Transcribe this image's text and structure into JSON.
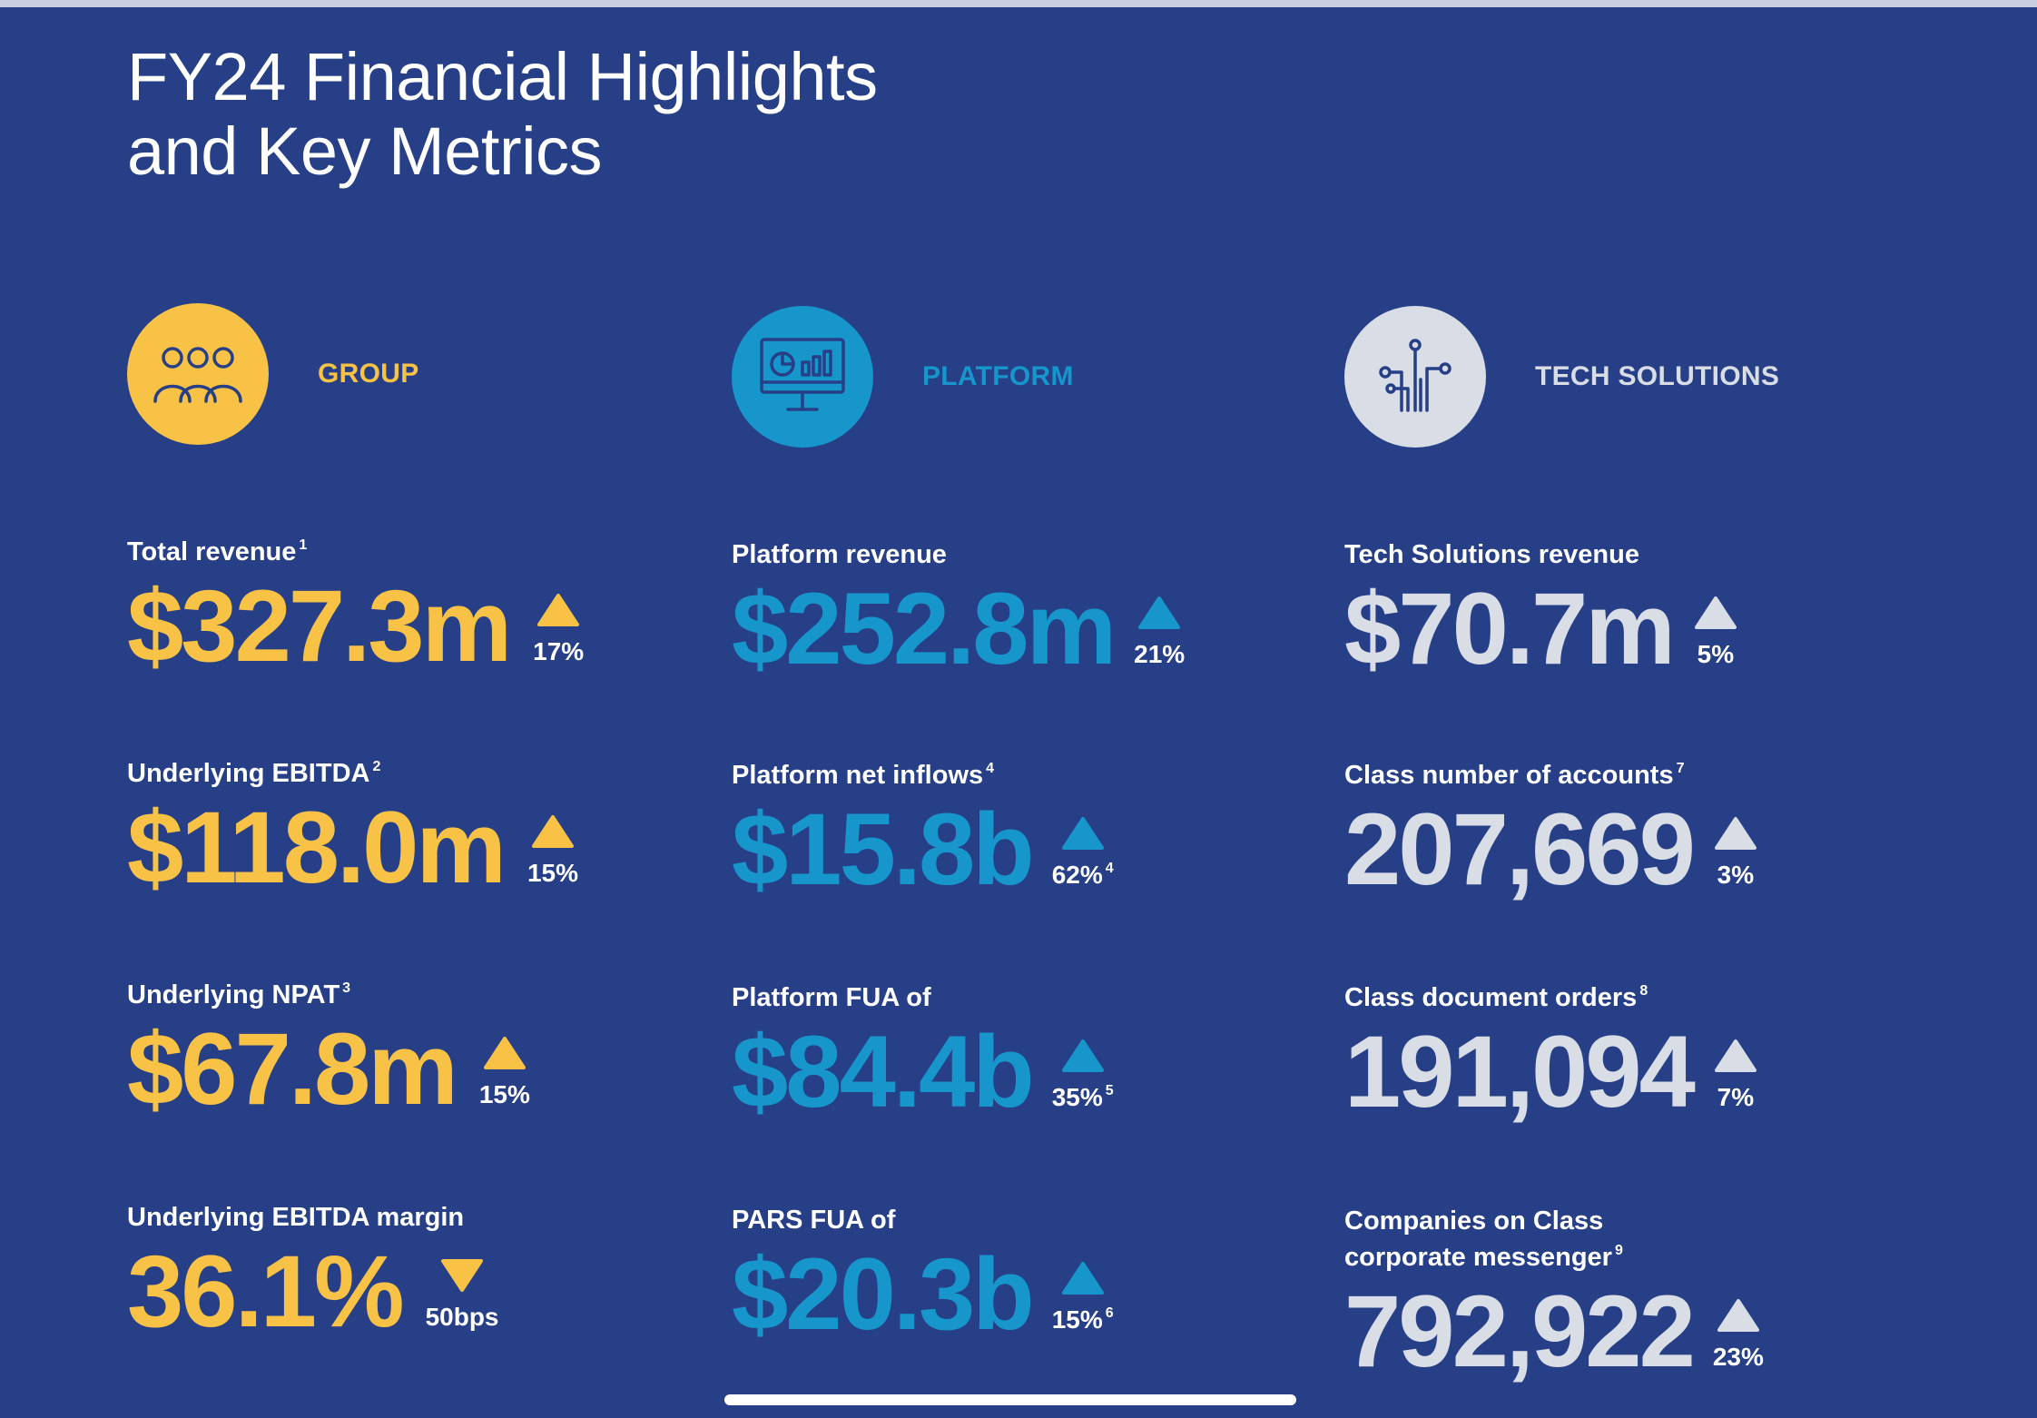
{
  "title": {
    "line1": "FY24 Financial Highlights",
    "line2": "and Key Metrics"
  },
  "colors": {
    "background": "#263f87",
    "group": "#f7c245",
    "platform": "#1796cc",
    "tech": "#d9dde5"
  },
  "columns": [
    {
      "heading": "GROUP",
      "icon": "people-group-icon",
      "metrics": [
        {
          "label": "Total revenue",
          "label_note": "1",
          "value": "$327.3m",
          "direction": "up",
          "change": "17%",
          "change_note": ""
        },
        {
          "label": "Underlying EBITDA",
          "label_note": "2",
          "value": "$118.0m",
          "direction": "up",
          "change": "15%",
          "change_note": ""
        },
        {
          "label": "Underlying NPAT",
          "label_note": "3",
          "value": "$67.8m",
          "direction": "up",
          "change": "15%",
          "change_note": ""
        },
        {
          "label": "Underlying EBITDA margin",
          "label_note": "",
          "value": "36.1%",
          "direction": "down",
          "change": "50bps",
          "change_note": ""
        }
      ]
    },
    {
      "heading": "PLATFORM",
      "icon": "monitor-chart-icon",
      "metrics": [
        {
          "label": "Platform revenue",
          "label_note": "",
          "value": "$252.8m",
          "direction": "up",
          "change": "21%",
          "change_note": ""
        },
        {
          "label": "Platform net inflows",
          "label_note": "4",
          "value": "$15.8b",
          "direction": "up",
          "change": "62%",
          "change_note": "4"
        },
        {
          "label": "Platform FUA of",
          "label_note": "",
          "value": "$84.4b",
          "direction": "up",
          "change": "35%",
          "change_note": "5"
        },
        {
          "label": "PARS FUA of",
          "label_note": "",
          "value": "$20.3b",
          "direction": "up",
          "change": "15%",
          "change_note": "6"
        }
      ]
    },
    {
      "heading": "TECH SOLUTIONS",
      "icon": "circuit-icon",
      "metrics": [
        {
          "label": "Tech Solutions revenue",
          "label_note": "",
          "value": "$70.7m",
          "direction": "up",
          "change": "5%",
          "change_note": ""
        },
        {
          "label": "Class number of accounts",
          "label_note": "7",
          "value": "207,669",
          "direction": "up",
          "change": "3%",
          "change_note": ""
        },
        {
          "label": "Class document orders",
          "label_note": "8",
          "value": "191,094",
          "direction": "up",
          "change": "7%",
          "change_note": ""
        },
        {
          "label": "Companies on Class",
          "label2": "corporate messenger",
          "label_note": "9",
          "value": "792,922",
          "direction": "up",
          "change": "23%",
          "change_note": ""
        }
      ]
    }
  ]
}
